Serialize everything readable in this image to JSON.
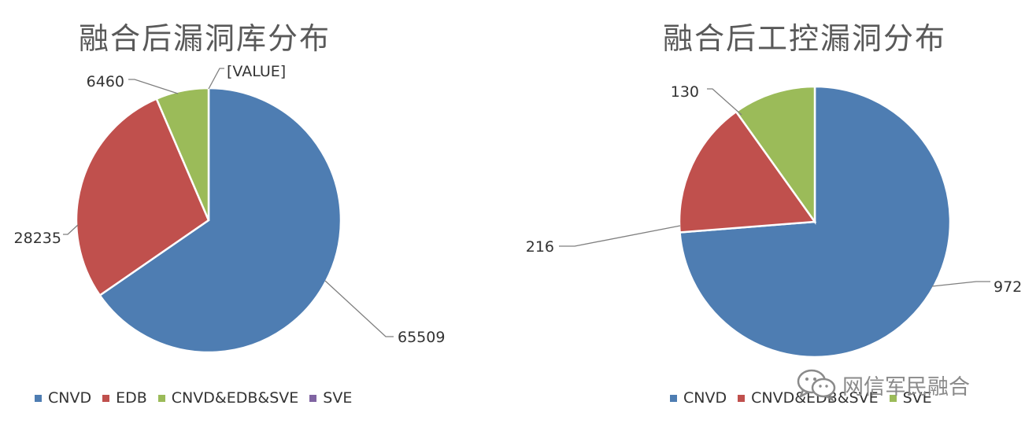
{
  "chart_data": [
    {
      "type": "pie",
      "title": "融合后漏洞库分布",
      "categories": [
        "CNVD",
        "EDB",
        "CNVD&EDB&SVE",
        "SVE"
      ],
      "values": [
        65509,
        28235,
        6460,
        0
      ],
      "data_labels": [
        "65509",
        "28235",
        "6460",
        "[VALUE]"
      ],
      "colors": [
        "#4e7db2",
        "#c0504d",
        "#9bbb59",
        "#8064a2"
      ],
      "legend": "bottom"
    },
    {
      "type": "pie",
      "title": "融合后工控漏洞分布",
      "categories": [
        "CNVD",
        "CNVD&EDB&SVE",
        "SVE"
      ],
      "values": [
        972,
        216,
        130
      ],
      "data_labels": [
        "972",
        "216",
        "130"
      ],
      "colors": [
        "#4e7db2",
        "#c0504d",
        "#9bbb59"
      ],
      "legend": "bottom"
    }
  ],
  "watermark": {
    "text": "网信军民融合",
    "icon": "wechat-icon"
  }
}
